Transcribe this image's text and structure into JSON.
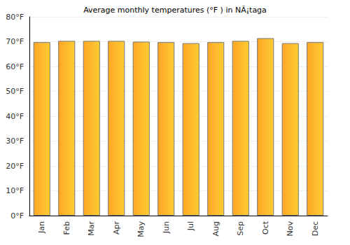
{
  "chart_data": {
    "type": "bar",
    "title": "Average monthly temperatures (°F ) in NÃ¡taga",
    "categories": [
      "Jan",
      "Feb",
      "Mar",
      "Apr",
      "May",
      "Jun",
      "Jul",
      "Aug",
      "Sep",
      "Oct",
      "Nov",
      "Dec"
    ],
    "values": [
      69.8,
      70.3,
      70.3,
      70.3,
      70.0,
      69.8,
      69.4,
      69.8,
      70.3,
      71.4,
      69.4,
      69.8
    ],
    "color": "#ffa726",
    "ylim": [
      0,
      80
    ],
    "yticks": [
      {
        "value": 0,
        "label": "0°F"
      },
      {
        "value": 10,
        "label": "10°F"
      },
      {
        "value": 20,
        "label": "20°F"
      },
      {
        "value": 30,
        "label": "30°F"
      },
      {
        "value": 40,
        "label": "40°F"
      },
      {
        "value": 50,
        "label": "50°F"
      },
      {
        "value": 60,
        "label": "60°F"
      },
      {
        "value": 70,
        "label": "70°F"
      },
      {
        "value": 80,
        "label": "80°F"
      }
    ],
    "grid": true
  }
}
